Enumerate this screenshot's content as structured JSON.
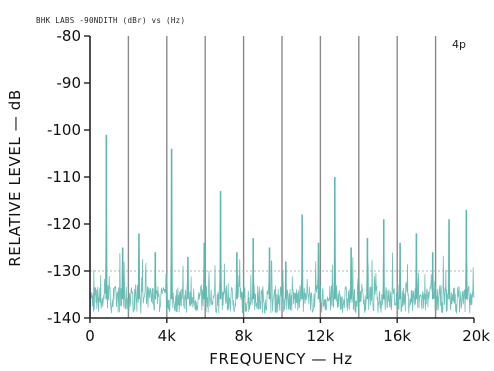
{
  "chart_data": {
    "type": "line",
    "title": "BHK LABS  -90NDITH  (dBr) vs  (Hz)",
    "panel_label": "4p",
    "xlabel": "FREQUENCY — Hz",
    "ylabel": "RELATIVE LEVEL — dB",
    "xlim": [
      0,
      20000
    ],
    "ylim": [
      -140,
      -80
    ],
    "x_ticks": [
      0,
      4000,
      8000,
      12000,
      16000,
      20000
    ],
    "x_tick_labels": [
      "0",
      "4k",
      "8k",
      "12k",
      "16k",
      "20k"
    ],
    "y_ticks": [
      -80,
      -90,
      -100,
      -110,
      -120,
      -130,
      -140
    ],
    "y_tick_labels": [
      "-80",
      "-90",
      "-100",
      "-110",
      "-120",
      "-130",
      "-140"
    ],
    "grid": {
      "vertical_every_hz": 2000,
      "horizontal_at_db": [
        -130
      ]
    },
    "series_color": "#5fb8b0",
    "noise_floor_db": -136,
    "peaks": [
      {
        "x": 850,
        "y": -101
      },
      {
        "x": 1700,
        "y": -125
      },
      {
        "x": 2550,
        "y": -122
      },
      {
        "x": 3400,
        "y": -126
      },
      {
        "x": 4250,
        "y": -104
      },
      {
        "x": 5100,
        "y": -127
      },
      {
        "x": 5950,
        "y": -124
      },
      {
        "x": 6800,
        "y": -113
      },
      {
        "x": 7650,
        "y": -126
      },
      {
        "x": 8500,
        "y": -123
      },
      {
        "x": 9350,
        "y": -125
      },
      {
        "x": 10200,
        "y": -128
      },
      {
        "x": 11050,
        "y": -118
      },
      {
        "x": 11900,
        "y": -124
      },
      {
        "x": 12750,
        "y": -110
      },
      {
        "x": 13600,
        "y": -125
      },
      {
        "x": 14450,
        "y": -123
      },
      {
        "x": 15300,
        "y": -119
      },
      {
        "x": 16150,
        "y": -124
      },
      {
        "x": 17000,
        "y": -122
      },
      {
        "x": 17850,
        "y": -126
      },
      {
        "x": 18700,
        "y": -119
      },
      {
        "x": 19600,
        "y": -117
      }
    ]
  }
}
